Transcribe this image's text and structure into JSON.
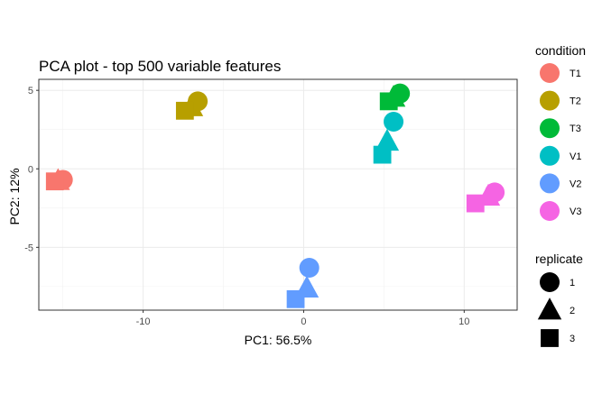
{
  "chart_data": {
    "type": "scatter",
    "title": "PCA plot - top 500 variable features",
    "xlabel": "PC1: 56.5%",
    "ylabel": "PC2: 12%",
    "xlim": [
      -16.5,
      13.3
    ],
    "ylim": [
      -9.0,
      5.7
    ],
    "x_ticks": [
      -10,
      0,
      10
    ],
    "y_ticks": [
      -5,
      0,
      5
    ],
    "x_tick_labels": [
      "-10",
      "0",
      "10"
    ],
    "y_tick_labels": [
      "-5",
      "0",
      "5"
    ],
    "grid": true,
    "legend_placement": "right",
    "color_legend": {
      "title": "condition",
      "entries": [
        {
          "label": "T1",
          "color": "#F8766D"
        },
        {
          "label": "T2",
          "color": "#B79F00"
        },
        {
          "label": "T3",
          "color": "#00BA38"
        },
        {
          "label": "V1",
          "color": "#00BFC4"
        },
        {
          "label": "V2",
          "color": "#619CFF"
        },
        {
          "label": "V3",
          "color": "#F564E3"
        }
      ]
    },
    "shape_legend": {
      "title": "replicate",
      "entries": [
        {
          "label": "1",
          "shape": "circle"
        },
        {
          "label": "2",
          "shape": "triangle"
        },
        {
          "label": "3",
          "shape": "square"
        }
      ]
    },
    "points": [
      {
        "condition": "T1",
        "replicate": "1",
        "x": -15.0,
        "y": -0.7
      },
      {
        "condition": "T1",
        "replicate": "2",
        "x": -15.3,
        "y": -0.75
      },
      {
        "condition": "T1",
        "replicate": "3",
        "x": -15.5,
        "y": -0.8
      },
      {
        "condition": "T2",
        "replicate": "1",
        "x": -6.6,
        "y": 4.3
      },
      {
        "condition": "T2",
        "replicate": "2",
        "x": -7.0,
        "y": 3.95
      },
      {
        "condition": "T2",
        "replicate": "3",
        "x": -7.4,
        "y": 3.7
      },
      {
        "condition": "T3",
        "replicate": "1",
        "x": 6.0,
        "y": 4.8
      },
      {
        "condition": "T3",
        "replicate": "2",
        "x": 5.6,
        "y": 4.55
      },
      {
        "condition": "T3",
        "replicate": "3",
        "x": 5.3,
        "y": 4.3
      },
      {
        "condition": "V1",
        "replicate": "1",
        "x": 5.6,
        "y": 3.0
      },
      {
        "condition": "V1",
        "replicate": "2",
        "x": 5.2,
        "y": 1.75
      },
      {
        "condition": "V1",
        "replicate": "3",
        "x": 4.9,
        "y": 0.9
      },
      {
        "condition": "V2",
        "replicate": "1",
        "x": 0.35,
        "y": -6.3
      },
      {
        "condition": "V2",
        "replicate": "2",
        "x": 0.2,
        "y": -7.6
      },
      {
        "condition": "V2",
        "replicate": "3",
        "x": -0.5,
        "y": -8.3
      },
      {
        "condition": "V3",
        "replicate": "1",
        "x": 11.9,
        "y": -1.5
      },
      {
        "condition": "V3",
        "replicate": "2",
        "x": 11.5,
        "y": -1.75
      },
      {
        "condition": "V3",
        "replicate": "3",
        "x": 10.7,
        "y": -2.2
      }
    ]
  }
}
